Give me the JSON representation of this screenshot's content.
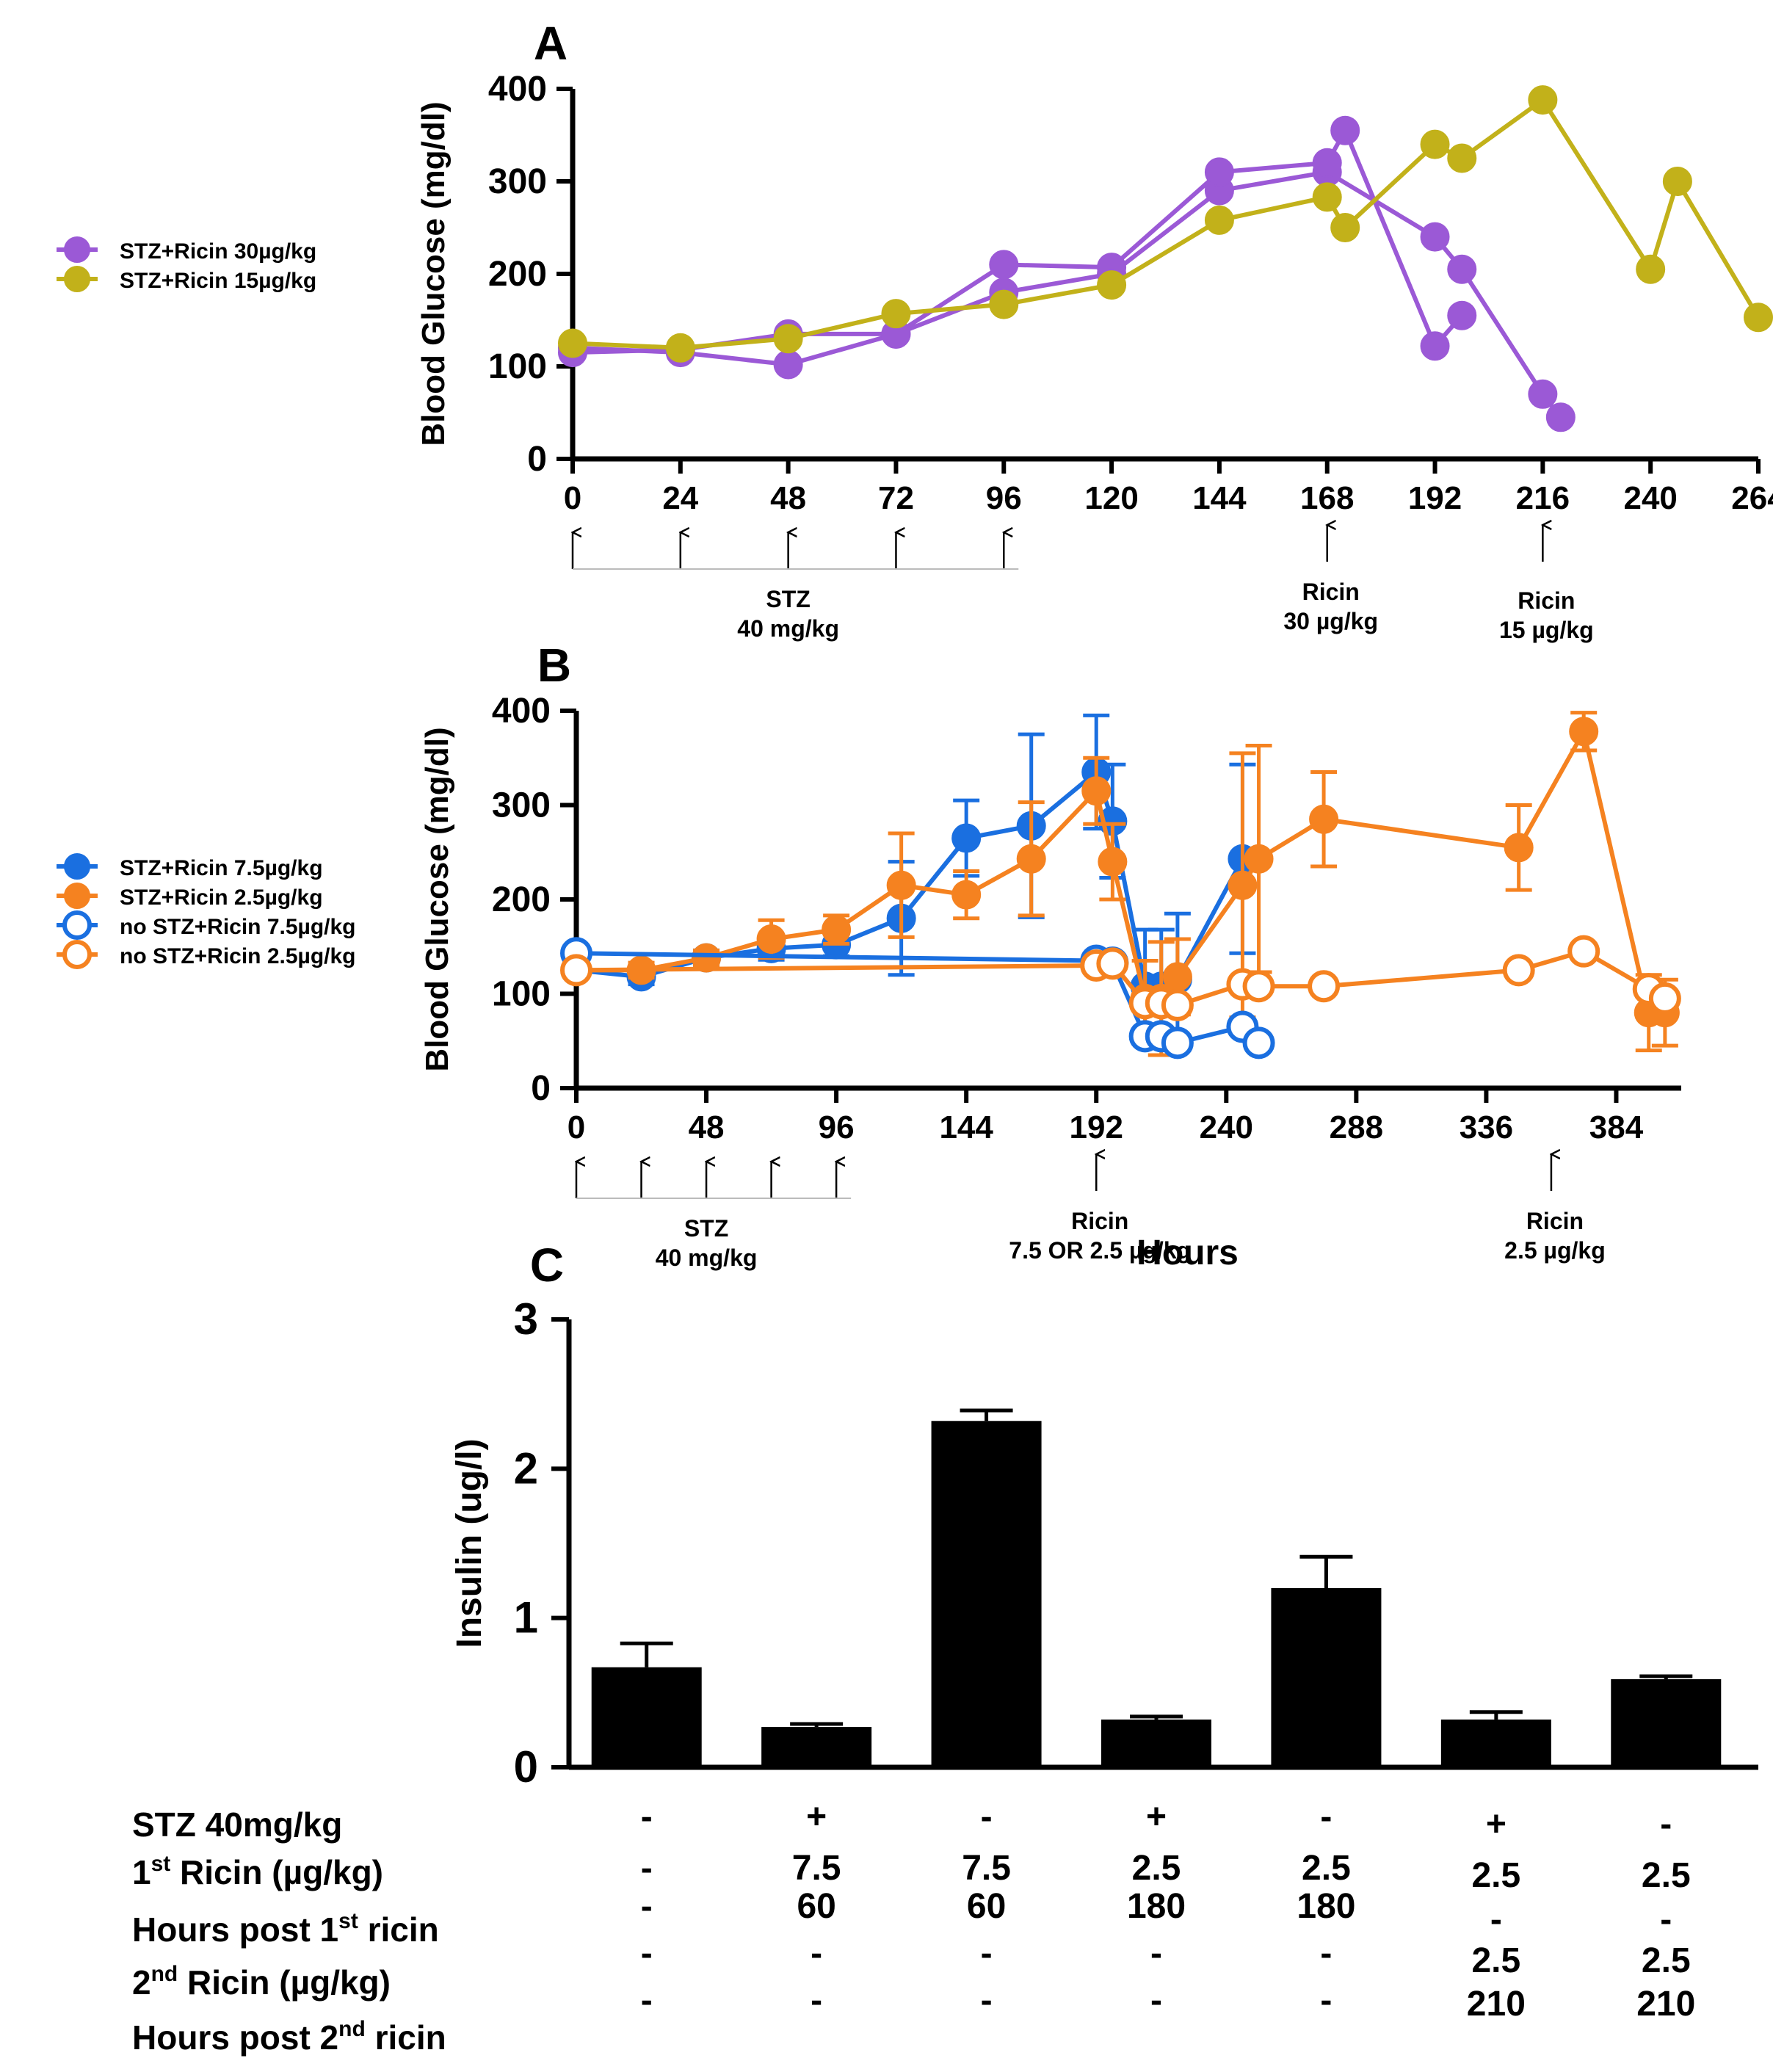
{
  "colors": {
    "purple": "#9b59d6",
    "olive": "#c2b11a",
    "blue": "#1a6fe0",
    "orange": "#f58220",
    "black": "#000000"
  },
  "chart_data": [
    {
      "panel": "A",
      "type": "line",
      "panel_label": "A",
      "ylabel": "Blood Glucose (mg/dl)",
      "xlabel": "",
      "ylim": [
        0,
        400
      ],
      "yticks": [
        "0",
        "100",
        "200",
        "300",
        "400"
      ],
      "xlim": [
        0,
        264
      ],
      "xticks": [
        "0",
        "24",
        "48",
        "72",
        "96",
        "120",
        "144",
        "168",
        "192",
        "216",
        "240",
        "264"
      ],
      "legend": [
        "STZ+Ricin 30µg/kg",
        "STZ+Ricin 15µg/kg"
      ],
      "series": [
        {
          "name": "STZ+Ricin 30µg/kg",
          "color": "purple",
          "filled": true,
          "x": [
            0,
            24,
            48,
            72,
            96,
            120,
            144,
            168,
            192,
            198,
            216,
            220
          ],
          "y": [
            120,
            115,
            102,
            135,
            180,
            200,
            290,
            310,
            240,
            205,
            70,
            45
          ]
        },
        {
          "name": "STZ+Ricin 30µg/kg",
          "color": "purple",
          "filled": true,
          "x": [
            0,
            24,
            48,
            72,
            96,
            120,
            144,
            168,
            172,
            192,
            198
          ],
          "y": [
            115,
            118,
            135,
            135,
            210,
            207,
            310,
            320,
            355,
            122,
            155
          ]
        },
        {
          "name": "STZ+Ricin 15µg/kg",
          "color": "olive",
          "filled": true,
          "x": [
            0,
            24,
            48,
            72,
            96,
            120,
            144,
            168,
            172,
            192,
            198,
            216,
            240,
            246,
            264
          ],
          "y": [
            125,
            120,
            130,
            157,
            167,
            188,
            258,
            283,
            250,
            340,
            325,
            388,
            205,
            300,
            153
          ]
        }
      ],
      "annotations": {
        "stz_arrows_x": [
          0,
          24,
          48,
          72,
          96
        ],
        "stz_label": [
          "STZ",
          "40 mg/kg"
        ],
        "ricin_arrows": [
          {
            "x": 168,
            "label": [
              "Ricin",
              "30 µg/kg"
            ]
          },
          {
            "x": 216,
            "label": [
              "Ricin",
              "15 µg/kg"
            ]
          }
        ]
      }
    },
    {
      "panel": "B",
      "type": "line",
      "panel_label": "B",
      "ylabel": "Blood Glucose (mg/dl)",
      "xlabel": "Hours",
      "ylim": [
        0,
        400
      ],
      "yticks": [
        "0",
        "100",
        "200",
        "300",
        "400"
      ],
      "xlim": [
        0,
        408
      ],
      "xticks": [
        "0",
        "48",
        "96",
        "144",
        "192",
        "240",
        "288",
        "336",
        "384"
      ],
      "legend": [
        "STZ+Ricin 7.5µg/kg",
        "STZ+Ricin 2.5µg/kg",
        "no STZ+Ricin 7.5µg/kg",
        "no STZ+Ricin 2.5µg/kg"
      ],
      "series": [
        {
          "name": "STZ+Ricin 7.5µg/kg",
          "color": "blue",
          "filled": true,
          "x": [
            0,
            24,
            48,
            72,
            96,
            120,
            144,
            168,
            192,
            198,
            210,
            216,
            222,
            246
          ],
          "y": [
            125,
            118,
            138,
            148,
            152,
            180,
            265,
            278,
            335,
            283,
            108,
            108,
            115,
            243
          ],
          "err": [
            8,
            8,
            8,
            12,
            12,
            60,
            40,
            97,
            60,
            60,
            60,
            60,
            70,
            100
          ]
        },
        {
          "name": "STZ+Ricin 2.5µg/kg",
          "color": "orange",
          "filled": true,
          "x": [
            0,
            24,
            48,
            72,
            96,
            120,
            144,
            168,
            192,
            198,
            210,
            216,
            222,
            246,
            252,
            276,
            348,
            372,
            396,
            402
          ],
          "y": [
            125,
            125,
            138,
            158,
            168,
            215,
            205,
            243,
            315,
            240,
            95,
            95,
            118,
            215,
            243,
            285,
            255,
            378,
            80,
            80
          ],
          "err": [
            8,
            8,
            8,
            20,
            15,
            55,
            25,
            60,
            35,
            40,
            40,
            60,
            40,
            140,
            120,
            50,
            45,
            20,
            40,
            35
          ]
        },
        {
          "name": "no STZ+Ricin 7.5µg/kg",
          "color": "blue",
          "filled": false,
          "x": [
            0,
            192,
            198,
            210,
            216,
            222,
            246,
            252
          ],
          "y": [
            143,
            135,
            133,
            55,
            55,
            48,
            65,
            48
          ]
        },
        {
          "name": "no STZ+Ricin 2.5µg/kg",
          "color": "orange",
          "filled": false,
          "x": [
            0,
            192,
            198,
            210,
            216,
            222,
            246,
            252,
            276,
            348,
            372,
            396,
            402
          ],
          "y": [
            125,
            130,
            132,
            90,
            90,
            88,
            110,
            108,
            108,
            125,
            145,
            105,
            95
          ]
        }
      ],
      "annotations": {
        "stz_arrows_x": [
          0,
          24,
          48,
          72,
          96
        ],
        "stz_label": [
          "STZ",
          "40 mg/kg"
        ],
        "ricin_arrows": [
          {
            "x": 192,
            "label": [
              "Ricin",
              "7.5 OR 2.5 µg/kg"
            ]
          },
          {
            "x": 360,
            "label": [
              "Ricin",
              "2.5 µg/kg"
            ]
          }
        ]
      }
    },
    {
      "panel": "C",
      "type": "bar",
      "panel_label": "C",
      "ylabel": "Insulin (ug/l)",
      "ylim": [
        0,
        3
      ],
      "yticks": [
        "0",
        "1",
        "2",
        "3"
      ],
      "values": [
        0.67,
        0.27,
        2.32,
        0.32,
        1.2,
        0.32,
        0.59
      ],
      "errors": [
        0.16,
        0.02,
        0.07,
        0.02,
        0.21,
        0.05,
        0.02
      ],
      "table": {
        "row_labels": [
          {
            "base": "STZ 40mg/kg",
            "sup": "",
            "rest": ""
          },
          {
            "base": "1",
            "sup": "st",
            "rest": " Ricin (µg/kg)"
          },
          {
            "base": "Hours post 1",
            "sup": "st",
            "rest": " ricin"
          },
          {
            "base": "2",
            "sup": "nd",
            "rest": " Ricin (µg/kg)"
          },
          {
            "base": "Hours post 2",
            "sup": "nd",
            "rest": " ricin"
          }
        ],
        "columns": [
          [
            "-",
            "-",
            "-",
            "-",
            "-"
          ],
          [
            "+",
            "7.5",
            "60",
            "-",
            "-"
          ],
          [
            "-",
            "7.5",
            "60",
            "-",
            "-"
          ],
          [
            "+",
            "2.5",
            "180",
            "-",
            "-"
          ],
          [
            "-",
            "2.5",
            "180",
            "-",
            "-"
          ],
          [
            "+",
            "2.5",
            "-",
            "2.5",
            "210"
          ],
          [
            "-",
            "2.5",
            "-",
            "2.5",
            "210"
          ]
        ]
      }
    }
  ]
}
